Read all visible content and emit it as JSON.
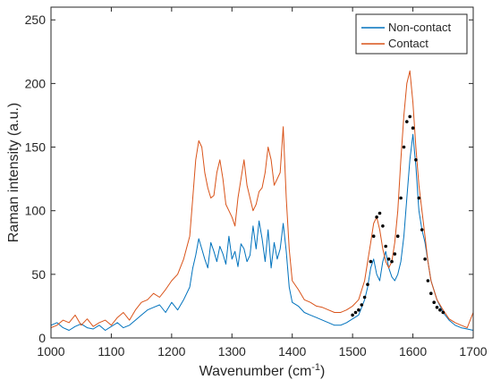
{
  "chart_data": {
    "type": "line",
    "title": "",
    "xlabel": "Wavenumber (cm",
    "xlabel_sup": "-1",
    "xlabel_end": ")",
    "ylabel": "Raman intensity (a.u.)",
    "xlim": [
      1000,
      1700
    ],
    "ylim": [
      0,
      260
    ],
    "xticks": [
      1000,
      1100,
      1200,
      1300,
      1400,
      1500,
      1600,
      1700
    ],
    "yticks": [
      0,
      50,
      100,
      150,
      200,
      250
    ],
    "grid": false,
    "legend_position": "top-right",
    "series": [
      {
        "name": "Non-contact",
        "color": "#0072BD",
        "x": [
          1000,
          1010,
          1020,
          1030,
          1040,
          1050,
          1060,
          1070,
          1080,
          1090,
          1100,
          1110,
          1120,
          1130,
          1140,
          1150,
          1160,
          1170,
          1180,
          1190,
          1200,
          1210,
          1220,
          1230,
          1235,
          1240,
          1245,
          1250,
          1255,
          1260,
          1265,
          1270,
          1275,
          1280,
          1285,
          1290,
          1295,
          1300,
          1305,
          1310,
          1315,
          1320,
          1325,
          1330,
          1335,
          1340,
          1345,
          1350,
          1355,
          1360,
          1365,
          1370,
          1375,
          1380,
          1385,
          1390,
          1395,
          1400,
          1410,
          1420,
          1430,
          1440,
          1450,
          1460,
          1470,
          1480,
          1490,
          1500,
          1510,
          1520,
          1525,
          1530,
          1535,
          1540,
          1545,
          1550,
          1555,
          1560,
          1565,
          1570,
          1575,
          1580,
          1585,
          1590,
          1595,
          1600,
          1605,
          1610,
          1615,
          1620,
          1625,
          1630,
          1640,
          1650,
          1660,
          1670,
          1680,
          1690,
          1700
        ],
        "values": [
          10,
          12,
          8,
          6,
          9,
          11,
          8,
          7,
          10,
          6,
          9,
          12,
          8,
          10,
          14,
          18,
          22,
          24,
          26,
          20,
          28,
          22,
          30,
          40,
          55,
          65,
          78,
          70,
          62,
          55,
          75,
          68,
          60,
          72,
          66,
          58,
          80,
          62,
          68,
          56,
          74,
          70,
          60,
          65,
          88,
          70,
          92,
          78,
          60,
          85,
          55,
          75,
          62,
          70,
          90,
          68,
          40,
          28,
          25,
          20,
          18,
          16,
          14,
          12,
          10,
          10,
          12,
          15,
          18,
          30,
          40,
          55,
          62,
          50,
          45,
          60,
          68,
          55,
          48,
          45,
          50,
          60,
          80,
          110,
          140,
          160,
          135,
          100,
          85,
          75,
          60,
          45,
          30,
          20,
          14,
          10,
          8,
          7,
          6
        ]
      },
      {
        "name": "Contact",
        "color": "#D95319",
        "x": [
          1000,
          1010,
          1020,
          1030,
          1040,
          1050,
          1060,
          1070,
          1080,
          1090,
          1100,
          1110,
          1120,
          1130,
          1140,
          1150,
          1160,
          1170,
          1180,
          1190,
          1200,
          1210,
          1220,
          1230,
          1235,
          1240,
          1245,
          1250,
          1255,
          1260,
          1265,
          1270,
          1275,
          1280,
          1285,
          1290,
          1295,
          1300,
          1305,
          1310,
          1315,
          1320,
          1325,
          1330,
          1335,
          1340,
          1345,
          1350,
          1355,
          1360,
          1365,
          1370,
          1375,
          1380,
          1385,
          1390,
          1395,
          1400,
          1410,
          1420,
          1430,
          1440,
          1450,
          1460,
          1470,
          1480,
          1490,
          1500,
          1510,
          1520,
          1525,
          1530,
          1535,
          1540,
          1545,
          1550,
          1555,
          1560,
          1565,
          1570,
          1575,
          1580,
          1585,
          1590,
          1595,
          1600,
          1605,
          1610,
          1615,
          1620,
          1625,
          1630,
          1640,
          1650,
          1660,
          1670,
          1680,
          1690,
          1700
        ],
        "values": [
          8,
          10,
          14,
          12,
          18,
          10,
          15,
          9,
          12,
          14,
          10,
          16,
          20,
          14,
          22,
          28,
          30,
          35,
          32,
          38,
          45,
          50,
          62,
          80,
          110,
          140,
          155,
          150,
          130,
          118,
          110,
          112,
          130,
          140,
          125,
          105,
          100,
          95,
          88,
          110,
          125,
          140,
          120,
          110,
          100,
          105,
          115,
          118,
          130,
          150,
          140,
          120,
          125,
          130,
          166,
          110,
          70,
          45,
          38,
          30,
          28,
          25,
          24,
          22,
          20,
          20,
          22,
          25,
          30,
          45,
          60,
          75,
          90,
          95,
          85,
          70,
          60,
          55,
          60,
          75,
          100,
          140,
          175,
          200,
          210,
          185,
          150,
          120,
          100,
          80,
          60,
          45,
          30,
          22,
          15,
          12,
          10,
          8,
          20
        ]
      }
    ],
    "fit_points": {
      "x": [
        1500,
        1505,
        1510,
        1515,
        1520,
        1525,
        1530,
        1535,
        1540,
        1545,
        1550,
        1555,
        1560,
        1565,
        1570,
        1575,
        1580,
        1585,
        1590,
        1595,
        1600,
        1605,
        1610,
        1615,
        1620,
        1625,
        1630,
        1635,
        1640,
        1645,
        1650
      ],
      "values": [
        18,
        20,
        22,
        26,
        32,
        42,
        60,
        80,
        95,
        98,
        88,
        72,
        62,
        60,
        66,
        80,
        110,
        150,
        170,
        174,
        165,
        140,
        110,
        85,
        62,
        45,
        35,
        28,
        24,
        22,
        20
      ]
    }
  }
}
